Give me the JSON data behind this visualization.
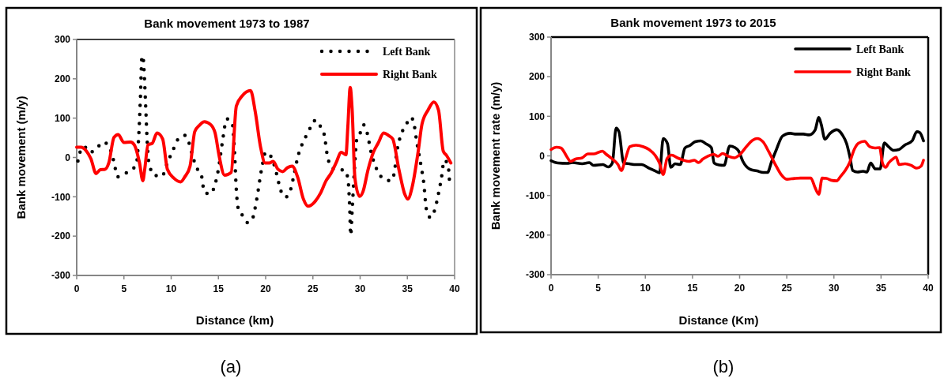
{
  "chart_data": [
    {
      "type": "line",
      "title": "Bank movement 1973 to 1987",
      "xlabel": "Distance (km)",
      "ylabel": "Bank movement (m/y)",
      "xlim": [
        0,
        40
      ],
      "xticks": [
        0,
        5,
        10,
        15,
        20,
        25,
        30,
        35,
        40
      ],
      "ylim": [
        -300,
        300
      ],
      "yticks": [
        -300,
        -200,
        -100,
        0,
        100,
        200,
        300
      ],
      "legend": "top right",
      "line_style": "solid",
      "annotations": [
        "(a)"
      ],
      "series": [
        {
          "name": "Left Bank",
          "color": "#000000",
          "line_style": "dotted",
          "x": [
            0.13,
            0.35,
            0.77,
            1.4,
            2.1,
            2.75,
            3.3,
            3.9,
            4.35,
            4.9,
            5.7,
            6.3,
            6.6,
            6.75,
            6.9,
            7.0,
            7.16,
            7.3,
            7.45,
            7.6,
            8.2,
            9.0,
            9.7,
            10.1,
            10.75,
            11.45,
            11.9,
            12.35,
            12.7,
            13.2,
            13.5,
            14.1,
            14.6,
            15.0,
            15.4,
            15.9,
            16.45,
            16.7,
            16.9,
            17.1,
            17.6,
            18.1,
            18.6,
            19.0,
            19.6,
            20.0,
            20.6,
            21.15,
            21.6,
            22.1,
            22.6,
            23.0,
            23.4,
            23.95,
            24.45,
            24.8,
            25.3,
            25.8,
            26.2,
            26.5,
            27.0,
            27.65,
            28.35,
            28.7,
            28.9,
            29.0,
            29.15,
            29.4,
            29.65,
            30.0,
            30.35,
            30.75,
            31.1,
            31.55,
            32.0,
            32.5,
            33.3,
            33.6,
            33.9,
            34.4,
            34.9,
            35.4,
            35.7,
            36.0,
            36.45,
            36.75,
            37.0,
            37.45,
            37.9,
            38.3,
            38.6,
            38.9,
            39.3,
            39.45
          ],
          "values": [
            -9,
            13,
            28,
            13,
            22,
            39,
            33,
            -7,
            -49,
            -43,
            -33,
            -18,
            70,
            155,
            255,
            258,
            208,
            131,
            47,
            -7,
            -45,
            -48,
            -7,
            13,
            47,
            56,
            36,
            -3,
            -26,
            -45,
            -87,
            -93,
            -72,
            -30,
            36,
            98,
            89,
            16,
            -84,
            -130,
            -149,
            -166,
            -156,
            -114,
            -26,
            13,
            1,
            -41,
            -84,
            -101,
            -85,
            -44,
            1,
            39,
            62,
            79,
            95,
            79,
            58,
            9,
            -26,
            -31,
            -32,
            -53,
            -130,
            -198,
            -137,
            -30,
            47,
            62,
            83,
            62,
            20,
            -18,
            -41,
            -55,
            -59,
            -41,
            16,
            62,
            85,
            102,
            85,
            39,
            -22,
            -68,
            -130,
            -153,
            -133,
            -91,
            -53,
            -7,
            -18,
            -58
          ]
        },
        {
          "name": "Right Bank",
          "color": "#ff0000",
          "x": [
            0,
            0.45,
            1.0,
            1.5,
            2.05,
            2.5,
            3.0,
            3.4,
            3.95,
            4.4,
            5.0,
            5.7,
            6.1,
            6.65,
            7.0,
            7.2,
            7.55,
            8.0,
            8.5,
            9.1,
            9.6,
            10.3,
            11.0,
            11.45,
            12.0,
            12.5,
            13.0,
            13.5,
            14.2,
            14.65,
            15.1,
            15.65,
            16.35,
            16.9,
            17.5,
            18.4,
            18.9,
            19.45,
            19.95,
            20.4,
            20.8,
            21.3,
            21.8,
            22.3,
            22.8,
            23.4,
            24.0,
            24.5,
            25.15,
            25.8,
            26.4,
            26.9,
            27.45,
            28.0,
            28.5,
            28.7,
            28.95,
            29.15,
            29.45,
            29.95,
            30.3,
            30.85,
            31.4,
            31.9,
            32.5,
            33.0,
            33.45,
            34.1,
            34.75,
            35.05,
            35.5,
            36.15,
            36.55,
            37.2,
            37.8,
            38.3,
            38.8,
            39.15,
            39.6
          ],
          "values": [
            26,
            26,
            17,
            -3,
            -41,
            -31,
            -30,
            -14,
            51,
            58,
            38,
            39,
            32,
            -14,
            -59,
            -30,
            32,
            36,
            62,
            47,
            -30,
            -53,
            -62,
            -49,
            -22,
            66,
            82,
            91,
            83,
            62,
            1,
            -45,
            -38,
            131,
            156,
            170,
            116,
            28,
            -14,
            -14,
            -10,
            -30,
            -36,
            -26,
            -22,
            -51,
            -106,
            -124,
            -114,
            -91,
            -59,
            -41,
            -14,
            13,
            7,
            78,
            178,
            124,
            -53,
            -99,
            -87,
            -30,
            13,
            36,
            62,
            56,
            47,
            -30,
            -95,
            -106,
            -76,
            16,
            85,
            121,
            141,
            120,
            16,
            5,
            -14
          ]
        }
      ]
    },
    {
      "type": "line",
      "title": "Bank movement 1973 to 2015",
      "xlabel": "Distance (Km)",
      "ylabel": "Bank movement rate (m/y)",
      "xlim": [
        0,
        40
      ],
      "xticks": [
        0,
        5,
        10,
        15,
        20,
        25,
        30,
        35,
        40
      ],
      "ylim": [
        -300,
        300
      ],
      "yticks": [
        -300,
        -200,
        -100,
        0,
        100,
        200,
        300
      ],
      "legend": "top right",
      "line_style": "solid",
      "annotations": [
        "(b)"
      ],
      "series": [
        {
          "name": "Left Bank",
          "color": "#000000",
          "x": [
            0,
            0.73,
            1.7,
            2.3,
            3.3,
            4.05,
            4.5,
            5.5,
            6.05,
            6.5,
            6.9,
            7.2,
            7.7,
            8.3,
            9.0,
            9.6,
            10.4,
            11.05,
            11.5,
            11.9,
            12.35,
            12.7,
            13.15,
            13.7,
            14.2,
            14.7,
            15.3,
            15.9,
            16.4,
            17.0,
            17.3,
            17.8,
            18.35,
            18.95,
            19.5,
            19.9,
            20.35,
            21.05,
            21.85,
            22.5,
            22.95,
            23.4,
            23.9,
            24.55,
            25.35,
            26.0,
            26.75,
            27.4,
            28.0,
            28.4,
            28.65,
            29.05,
            29.6,
            30.3,
            30.9,
            31.35,
            31.7,
            32.0,
            32.5,
            33.1,
            33.5,
            33.9,
            34.4,
            34.9,
            35.35,
            35.8,
            36.3,
            36.9,
            37.5,
            38.3,
            38.8,
            39.1,
            39.5
          ],
          "values": [
            -12,
            -18,
            -19,
            -17,
            -20,
            -17,
            -24,
            -22,
            -28,
            -18,
            70,
            61,
            -18,
            -20,
            -22,
            -22,
            -31,
            -38,
            -43,
            44,
            31,
            -29,
            -20,
            -22,
            20,
            26,
            36,
            38,
            31,
            21,
            -18,
            -23,
            -24,
            25,
            21,
            12,
            -14,
            -33,
            -38,
            -42,
            -42,
            -14,
            16,
            50,
            57,
            55,
            55,
            53,
            65,
            97,
            80,
            42,
            57,
            66,
            53,
            31,
            -3,
            -37,
            -41,
            -39,
            -41,
            -18,
            -33,
            -33,
            33,
            23,
            14,
            16,
            27,
            38,
            61,
            59,
            38
          ]
        },
        {
          "name": "Right Bank",
          "color": "#ff0000",
          "x": [
            0,
            0.57,
            1.05,
            1.7,
            2.05,
            2.6,
            3.3,
            3.9,
            4.55,
            5.45,
            5.8,
            6.45,
            7.1,
            7.45,
            7.9,
            8.35,
            9.0,
            9.8,
            10.4,
            11.05,
            11.5,
            11.9,
            12.3,
            12.8,
            13.4,
            14.05,
            14.6,
            15.2,
            15.65,
            16.1,
            16.6,
            17.25,
            17.7,
            18.2,
            18.8,
            19.45,
            20.1,
            20.7,
            21.4,
            21.85,
            22.5,
            23.1,
            23.75,
            24.4,
            25.0,
            25.8,
            26.45,
            27.1,
            27.55,
            28.0,
            28.4,
            28.75,
            29.2,
            29.8,
            30.3,
            30.7,
            31.2,
            31.65,
            32.15,
            32.6,
            33.25,
            33.8,
            34.35,
            34.85,
            35.15,
            35.5,
            35.8,
            36.3,
            36.6,
            36.9,
            37.55,
            38.2,
            38.8,
            39.25,
            39.5
          ],
          "values": [
            16,
            22,
            20,
            -3,
            -14,
            -8,
            -5,
            5,
            5,
            12,
            5,
            -7,
            -22,
            -37,
            -7,
            23,
            27,
            23,
            16,
            1,
            -18,
            -47,
            -7,
            2,
            -5,
            -11,
            -14,
            -11,
            -17,
            -8,
            -1,
            4,
            -1,
            6,
            -1,
            -5,
            5,
            23,
            40,
            44,
            35,
            10,
            -20,
            -47,
            -59,
            -57,
            -56,
            -56,
            -56,
            -80,
            -97,
            -56,
            -57,
            -62,
            -63,
            -52,
            -37,
            -18,
            16,
            32,
            37,
            23,
            20,
            21,
            -18,
            -29,
            -18,
            -7,
            -3,
            -22,
            -20,
            -24,
            -31,
            -26,
            -11
          ]
        }
      ]
    }
  ]
}
